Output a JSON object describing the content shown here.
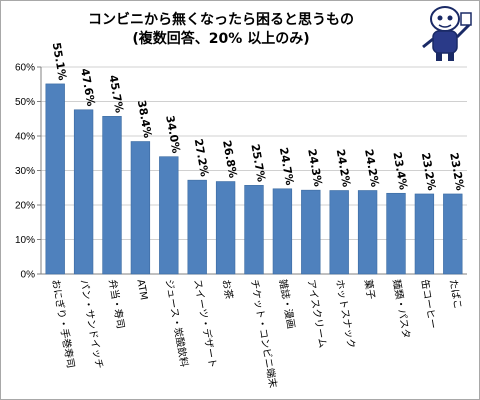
{
  "title": {
    "line1": "コンビニから無くなったら困ると思うもの",
    "line2": "(複数回答、20% 以上のみ)"
  },
  "colors": {
    "bar": "#4f81bd",
    "bar_edge": "#3a6aa0",
    "grid": "#d0d0d0",
    "axis": "#808080"
  },
  "chart_data": {
    "type": "bar",
    "categories": [
      "おにぎり・手巻寿司",
      "パン・サンドイッチ",
      "弁当・寿司",
      "ATM",
      "ジュース・炭酸飲料",
      "スイーツ・デザート",
      "お茶",
      "チケット・コンビニ端末",
      "雑誌・漫画",
      "アイスクリーム",
      "ホットスナック",
      "菓子",
      "麺類・パスタ",
      "缶コーヒー",
      "たばこ"
    ],
    "values": [
      55.1,
      47.6,
      45.7,
      38.4,
      34.0,
      27.2,
      26.8,
      25.7,
      24.7,
      24.3,
      24.2,
      24.2,
      23.4,
      23.2,
      23.2
    ],
    "value_labels": [
      "55.1%",
      "47.6%",
      "45.7%",
      "38.4%",
      "34.0%",
      "27.2%",
      "26.8%",
      "25.7%",
      "24.7%",
      "24.3%",
      "24.2%",
      "24.2%",
      "23.4%",
      "23.2%",
      "23.2%"
    ],
    "yticks": [
      "0%",
      "10%",
      "20%",
      "30%",
      "40%",
      "50%",
      "60%"
    ],
    "ylim": [
      0,
      60
    ],
    "grid": true
  }
}
